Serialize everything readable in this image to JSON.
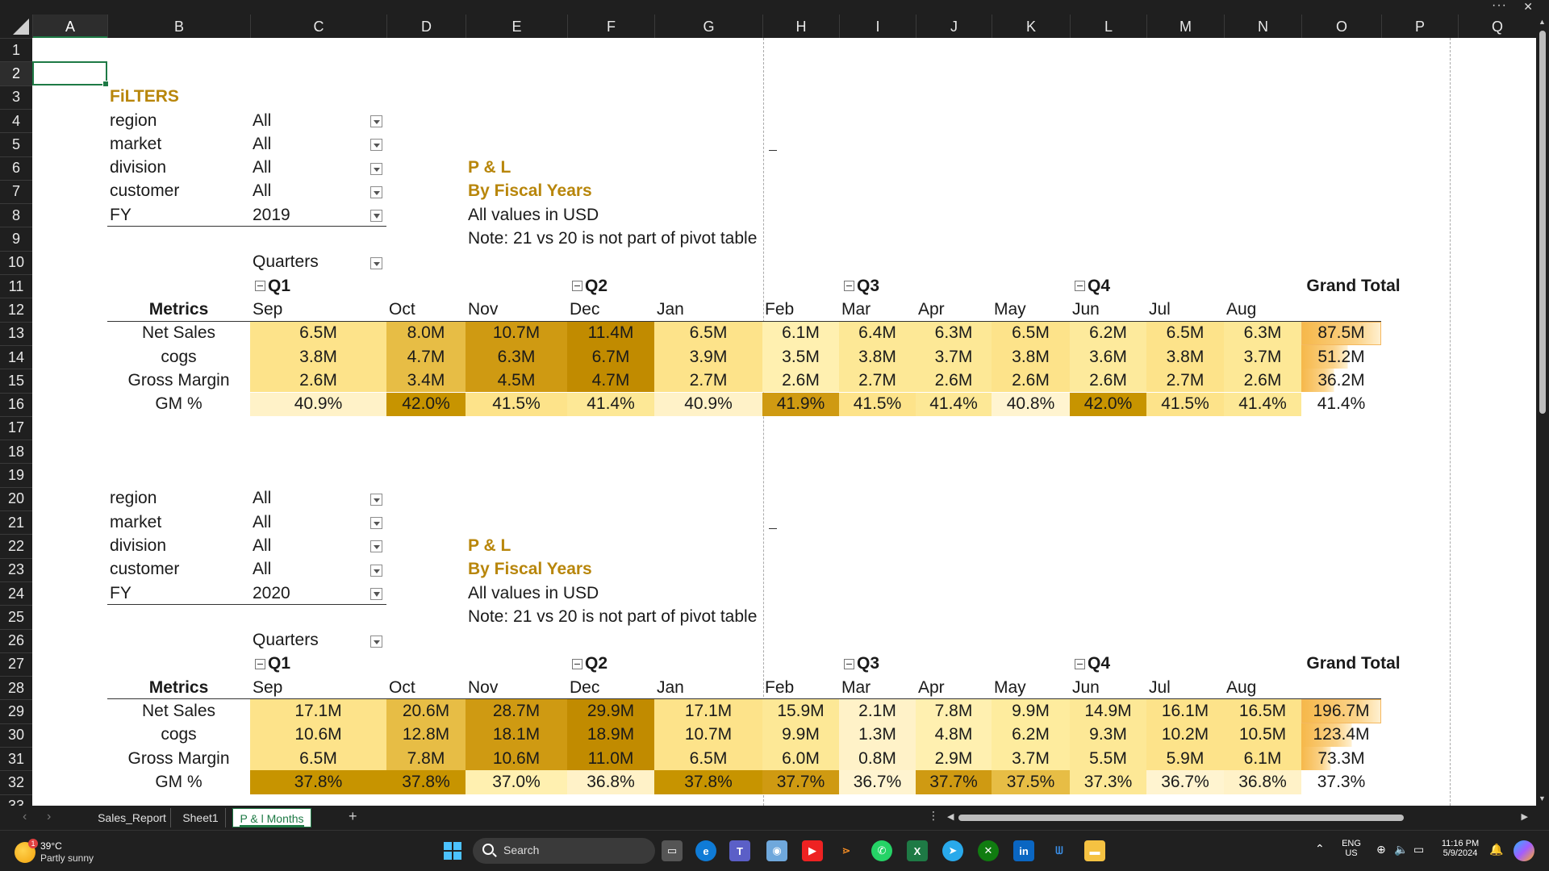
{
  "window": {
    "more_icon": "more-icon",
    "close_icon": "close-icon"
  },
  "columns": [
    "A",
    "B",
    "C",
    "D",
    "E",
    "F",
    "G",
    "H",
    "I",
    "J",
    "K",
    "L",
    "M",
    "N",
    "O",
    "P",
    "Q"
  ],
  "rows": [
    "1",
    "2",
    "3",
    "4",
    "5",
    "6",
    "7",
    "8",
    "9",
    "10",
    "11",
    "12",
    "13",
    "14",
    "15",
    "16",
    "17",
    "18",
    "19",
    "20",
    "21",
    "22",
    "23",
    "24",
    "25",
    "26",
    "27",
    "28",
    "29",
    "30",
    "31",
    "32",
    "33"
  ],
  "selected_cell": "A2",
  "filters_title": "FiLTERS",
  "filter_block_1": {
    "labels": [
      "region",
      "market",
      "division",
      "customer",
      "FY"
    ],
    "values": [
      "All",
      "All",
      "All",
      "All",
      "2019"
    ]
  },
  "filter_block_2": {
    "labels": [
      "region",
      "market",
      "division",
      "customer",
      "FY"
    ],
    "values": [
      "All",
      "All",
      "All",
      "All",
      "2020"
    ]
  },
  "pl_block": {
    "title": "P & L",
    "subtitle": "By Fiscal Years",
    "units": "All values in USD",
    "note": "Note: 21 vs 20 is not part of pivot table"
  },
  "pivot_1": {
    "quarters_label": "Quarters",
    "quarters": [
      "Q1",
      "Q2",
      "Q3",
      "Q4"
    ],
    "grand_total_label": "Grand Total",
    "metrics_label": "Metrics",
    "months": [
      "Sep",
      "Oct",
      "Nov",
      "Dec",
      "Jan",
      "Feb",
      "Mar",
      "Apr",
      "May",
      "Jun",
      "Jul",
      "Aug"
    ],
    "rows": [
      {
        "metric": "Net Sales",
        "values": [
          "6.5M",
          "8.0M",
          "10.7M",
          "11.4M",
          "6.5M",
          "6.1M",
          "6.4M",
          "6.3M",
          "6.5M",
          "6.2M",
          "6.5M",
          "6.3M"
        ],
        "total": "87.5M",
        "colors": [
          "#fde38a",
          "#e7bd45",
          "#cf9a12",
          "#c18b00",
          "#fde38a",
          "#fff0b0",
          "#fde896",
          "#fde896",
          "#fde38a",
          "#fdea9c",
          "#fde38a",
          "#fde896"
        ]
      },
      {
        "metric": "cogs",
        "values": [
          "3.8M",
          "4.7M",
          "6.3M",
          "6.7M",
          "3.9M",
          "3.5M",
          "3.8M",
          "3.7M",
          "3.8M",
          "3.6M",
          "3.8M",
          "3.7M"
        ],
        "total": "51.2M",
        "colors": [
          "#fde38a",
          "#e7bd45",
          "#cf9a12",
          "#c18b00",
          "#fde38a",
          "#fff0b0",
          "#fde896",
          "#fde896",
          "#fde38a",
          "#fdea9c",
          "#fde38a",
          "#fde896"
        ]
      },
      {
        "metric": "Gross Margin",
        "values": [
          "2.6M",
          "3.4M",
          "4.5M",
          "4.7M",
          "2.7M",
          "2.6M",
          "2.7M",
          "2.6M",
          "2.6M",
          "2.6M",
          "2.7M",
          "2.6M"
        ],
        "total": "36.2M",
        "colors": [
          "#fde38a",
          "#e7bd45",
          "#cf9a12",
          "#c18b00",
          "#fde38a",
          "#fff0b0",
          "#fde896",
          "#fde896",
          "#fde38a",
          "#fdea9c",
          "#fde38a",
          "#fde896"
        ]
      },
      {
        "metric": "GM %",
        "values": [
          "40.9%",
          "42.0%",
          "41.5%",
          "41.4%",
          "40.9%",
          "41.9%",
          "41.5%",
          "41.4%",
          "40.8%",
          "42.0%",
          "41.5%",
          "41.4%"
        ],
        "total": "41.4%",
        "colors": [
          "#fff2c8",
          "#c79400",
          "#fde38a",
          "#fde896",
          "#fff2c8",
          "#cf9a12",
          "#fde38a",
          "#fde896",
          "#fff4d0",
          "#c79400",
          "#fde38a",
          "#fde896"
        ]
      }
    ],
    "total_fill": [
      1.0,
      0.58,
      0.41
    ]
  },
  "pivot_2": {
    "quarters_label": "Quarters",
    "quarters": [
      "Q1",
      "Q2",
      "Q3",
      "Q4"
    ],
    "grand_total_label": "Grand Total",
    "metrics_label": "Metrics",
    "months": [
      "Sep",
      "Oct",
      "Nov",
      "Dec",
      "Jan",
      "Feb",
      "Mar",
      "Apr",
      "May",
      "Jun",
      "Jul",
      "Aug"
    ],
    "rows": [
      {
        "metric": "Net Sales",
        "values": [
          "17.1M",
          "20.6M",
          "28.7M",
          "29.9M",
          "17.1M",
          "15.9M",
          "2.1M",
          "7.8M",
          "9.9M",
          "14.9M",
          "16.1M",
          "16.5M"
        ],
        "total": "196.7M",
        "colors": [
          "#fde38a",
          "#e7bd45",
          "#cf9a12",
          "#c18b00",
          "#fde38a",
          "#fde896",
          "#fff2c8",
          "#fff0b0",
          "#feec9e",
          "#fde896",
          "#fde38a",
          "#fde38a"
        ]
      },
      {
        "metric": "cogs",
        "values": [
          "10.6M",
          "12.8M",
          "18.1M",
          "18.9M",
          "10.7M",
          "9.9M",
          "1.3M",
          "4.8M",
          "6.2M",
          "9.3M",
          "10.2M",
          "10.5M"
        ],
        "total": "123.4M",
        "colors": [
          "#fde38a",
          "#e7bd45",
          "#cf9a12",
          "#c18b00",
          "#fde38a",
          "#fde896",
          "#fff2c8",
          "#fff0b0",
          "#feec9e",
          "#fde896",
          "#fde38a",
          "#fde38a"
        ]
      },
      {
        "metric": "Gross Margin",
        "values": [
          "6.5M",
          "7.8M",
          "10.6M",
          "11.0M",
          "6.5M",
          "6.0M",
          "0.8M",
          "2.9M",
          "3.7M",
          "5.5M",
          "5.9M",
          "6.1M"
        ],
        "total": "73.3M",
        "colors": [
          "#fde38a",
          "#e7bd45",
          "#cf9a12",
          "#c18b00",
          "#fde38a",
          "#fde896",
          "#fff2c8",
          "#fff0b0",
          "#feec9e",
          "#fde896",
          "#fde38a",
          "#fde38a"
        ]
      },
      {
        "metric": "GM %",
        "values": [
          "37.8%",
          "37.8%",
          "37.0%",
          "36.8%",
          "37.8%",
          "37.7%",
          "36.7%",
          "37.7%",
          "37.5%",
          "37.3%",
          "36.7%",
          "36.8%"
        ],
        "total": "37.3%",
        "colors": [
          "#c79400",
          "#c79400",
          "#fff0b0",
          "#fff2c8",
          "#c79400",
          "#cf9a12",
          "#fff4d0",
          "#cf9a12",
          "#e7bd45",
          "#fde896",
          "#fff4d0",
          "#fff2c8"
        ]
      }
    ],
    "total_fill": [
      1.0,
      0.63,
      0.37
    ]
  },
  "sheet_tabs": [
    "Sales_Report",
    "Sheet1",
    "P & l Months"
  ],
  "active_sheet": "P & l Months",
  "add_sheet_label": "+",
  "taskbar": {
    "weather_temp": "39°C",
    "weather_cond": "Partly sunny",
    "weather_badge": "1",
    "search_placeholder": "Search",
    "lang": "ENG",
    "region": "US",
    "time": "11:16 PM",
    "date": "5/9/2024"
  }
}
